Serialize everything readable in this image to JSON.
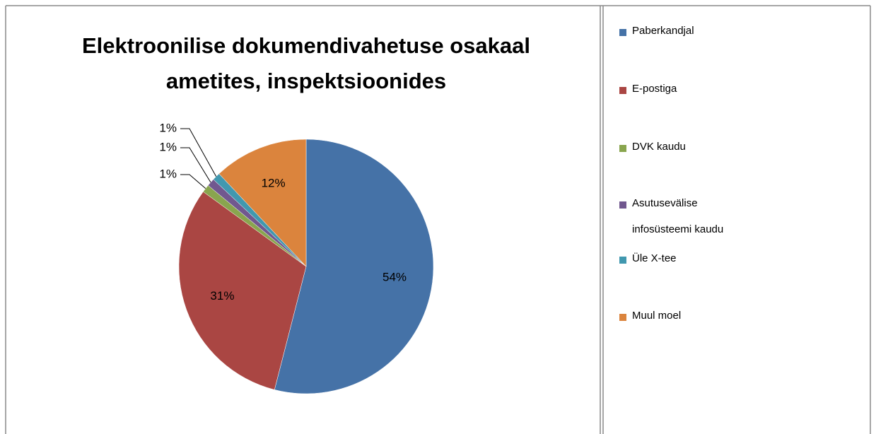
{
  "chart_data": {
    "type": "pie",
    "title": "Elektroonilise dokumendivahetuse osakaal ametites, inspektsioonides",
    "categories": [
      "Paberkandjal",
      "E-postiga",
      "DVK kaudu",
      "Asutusevälise infosüsteemi kaudu",
      "Üle X-tee",
      "Muul moel"
    ],
    "values": [
      54,
      31,
      1,
      1,
      1,
      12
    ],
    "value_labels": [
      "54%",
      "31%",
      "1%",
      "1%",
      "1%",
      "12%"
    ],
    "colors": [
      "#4572a7",
      "#aa4643",
      "#89a54e",
      "#71588f",
      "#4198af",
      "#db843d"
    ],
    "legend": "right"
  }
}
